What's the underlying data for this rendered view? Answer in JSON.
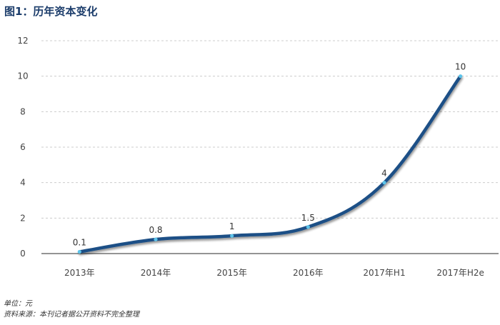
{
  "title": "图1：历年资本变化",
  "unit_note": "单位：元",
  "source_note": "资料来源：本刊记者据公开资料不完全整理",
  "colors": {
    "line": "#1b4f86",
    "marker": "#5cc3ea",
    "title": "#1c3d6b",
    "grid": "#cccccc"
  },
  "chart_data": {
    "type": "line",
    "title": "图1：历年资本变化",
    "xlabel": "",
    "ylabel": "",
    "categories": [
      "2013年",
      "2014年",
      "2015年",
      "2016年",
      "2017年H1",
      "2017年H2e"
    ],
    "series": [
      {
        "values": [
          0.1,
          0.8,
          1,
          1.5,
          4,
          10
        ],
        "labels": [
          "0.1",
          "0.8",
          "1",
          "1.5",
          "4",
          "10"
        ]
      }
    ],
    "ylim": [
      0,
      12
    ],
    "yticks": [
      0,
      2,
      4,
      6,
      8,
      10,
      12
    ],
    "grid": true,
    "legend": "none"
  }
}
